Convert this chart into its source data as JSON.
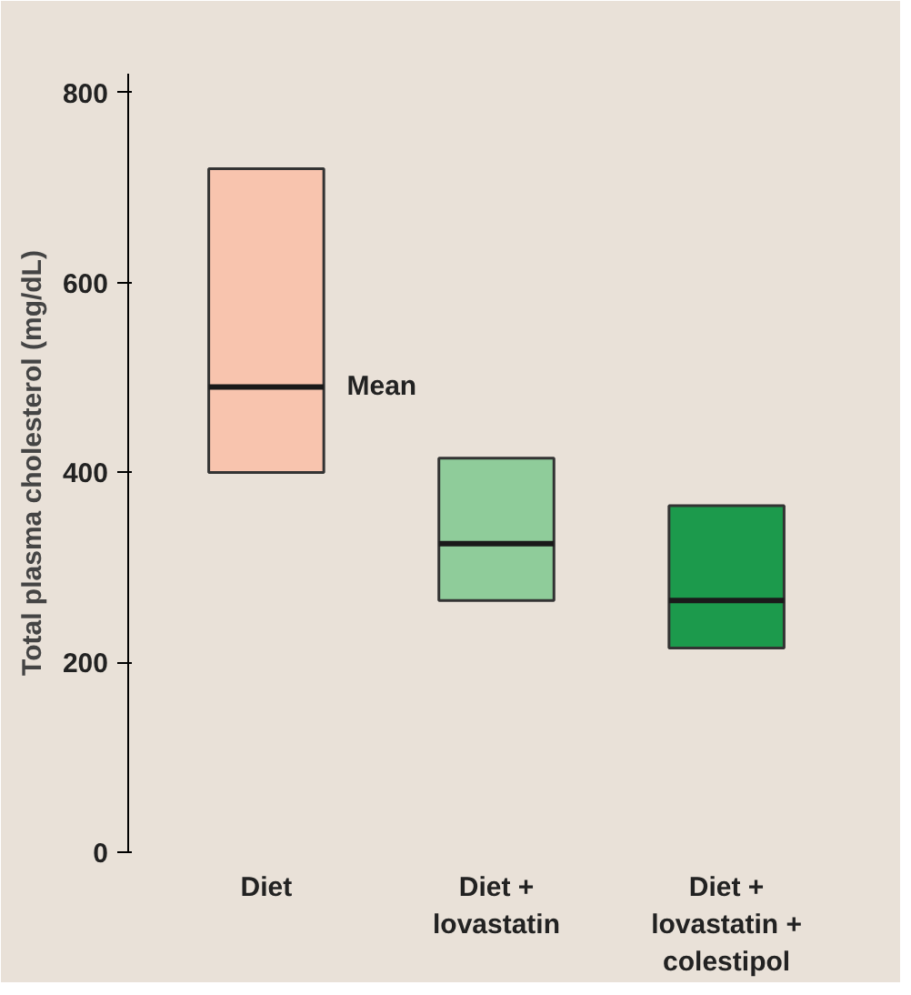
{
  "chart_data": {
    "type": "box",
    "ylabel": "Total plasma cholesterol (mg/dL)",
    "categories": [
      "Diet",
      "Diet +\nlovastatin",
      "Diet +\nlovastatin +\ncolestipol"
    ],
    "boxes": [
      {
        "low": 400,
        "q1": 400,
        "q3": 720,
        "high": 720,
        "median": 490
      },
      {
        "low": 265,
        "q1": 265,
        "q3": 415,
        "high": 415,
        "median": 325
      },
      {
        "low": 215,
        "q1": 215,
        "q3": 365,
        "high": 365,
        "median": 265
      }
    ],
    "colors": [
      "#f8c4ae",
      "#8fcc9a",
      "#1c9a4c"
    ],
    "annotations": [
      "Mean"
    ],
    "ylim": [
      0,
      820
    ],
    "yticks": [
      0,
      200,
      400,
      600,
      800
    ],
    "grid": false
  }
}
